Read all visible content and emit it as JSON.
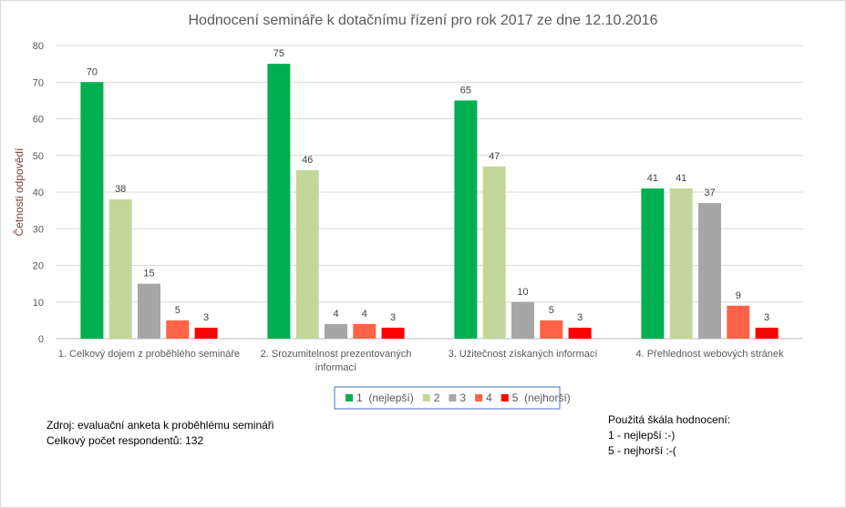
{
  "chart_data": {
    "type": "bar",
    "title": "Hodnocení semináře k dotačnímu řízení pro rok 2017 ze dne 12.10.2016",
    "ylabel": "Četnosti odpovědí",
    "xlabel": "",
    "ylim": [
      0,
      80
    ],
    "yticks": [
      0,
      10,
      20,
      30,
      40,
      50,
      60,
      70,
      80
    ],
    "grid": true,
    "legend_position": "bottom",
    "categories": [
      [
        "1. Celkový dojem z proběhlého semináře"
      ],
      [
        "2. Srozumitelnost prezentovaných",
        "informací"
      ],
      [
        "3. Užitečnost získaných informací"
      ],
      [
        "4. Přehlednost webových stránek"
      ]
    ],
    "series": [
      {
        "name": "1  (nejlepší)",
        "color": "#00B050",
        "values": [
          70,
          75,
          65,
          41
        ]
      },
      {
        "name": "2",
        "color": "#C4D79B",
        "values": [
          38,
          46,
          47,
          41
        ]
      },
      {
        "name": "3",
        "color": "#A6A6A6",
        "values": [
          15,
          4,
          10,
          37
        ]
      },
      {
        "name": "4",
        "color": "#FF6347",
        "values": [
          5,
          4,
          5,
          9
        ]
      },
      {
        "name": "5  (nejhorší)",
        "color": "#FF0000",
        "values": [
          3,
          3,
          3,
          3
        ]
      }
    ]
  },
  "notes": {
    "source": "Zdroj: evaluační anketa k proběhlému semináři",
    "respondents": "Celkový počet respondentů: 132",
    "scale_title": "Použitá škála hodnocení:",
    "scale_best": "1 - nejlepší :-)",
    "scale_worst": "5 - nejhorší :-("
  }
}
